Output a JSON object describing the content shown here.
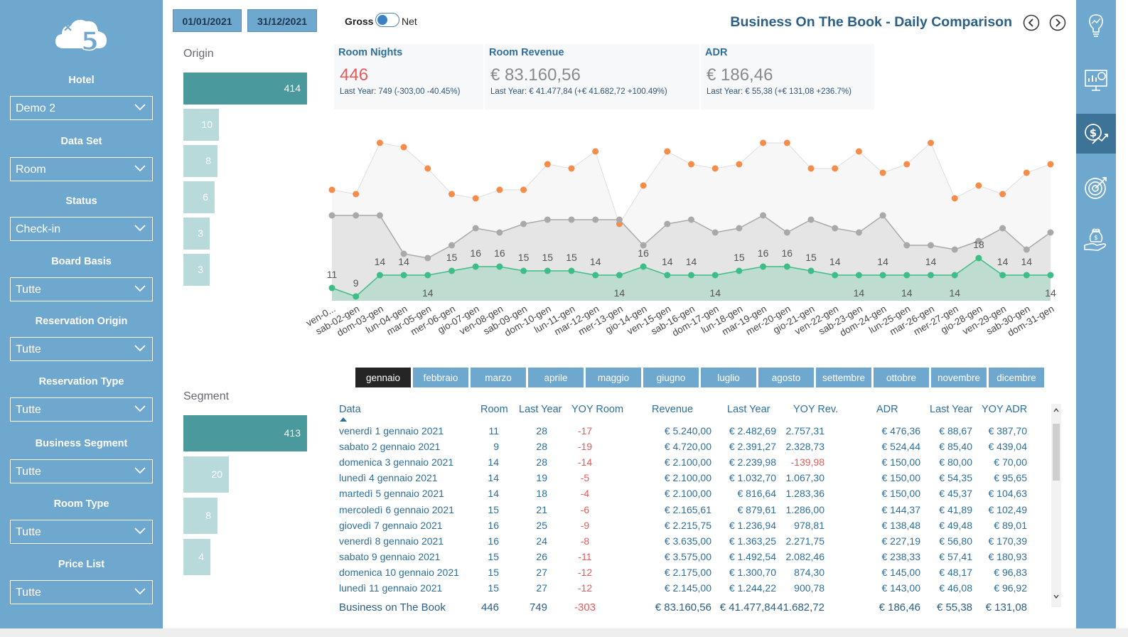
{
  "header": {
    "start_date": "01/01/2021",
    "end_date": "31/12/2021",
    "toggle_left": "Gross",
    "toggle_right": "Net",
    "title": "Business On The Book - Daily Comparison"
  },
  "filters": [
    {
      "label": "Hotel",
      "value": "Demo 2"
    },
    {
      "label": "Data Set",
      "value": "Room"
    },
    {
      "label": "Status",
      "value": "Check-in"
    },
    {
      "label": "Board Basis",
      "value": "Tutte"
    },
    {
      "label": "Reservation Origin",
      "value": "Tutte"
    },
    {
      "label": "Reservation Type",
      "value": "Tutte"
    },
    {
      "label": "Business Segment",
      "value": "Tutte"
    },
    {
      "label": "Room Type",
      "value": "Tutte"
    },
    {
      "label": "Price List",
      "value": "Tutte"
    }
  ],
  "rail": [
    "lightbulb-chart-icon",
    "presentation-chart-icon",
    "dollar-trend-icon",
    "target-icon",
    "money-bag-hand-icon"
  ],
  "origin": {
    "title": "Origin",
    "values": [
      414,
      10,
      8,
      6,
      3,
      3
    ]
  },
  "segment": {
    "title": "Segment",
    "values": [
      413,
      20,
      8,
      4
    ]
  },
  "kpis": [
    {
      "title": "Room Nights",
      "value": "446",
      "sub": "Last Year: 749 (-303,00 -40.45%)"
    },
    {
      "title": "Room Revenue",
      "value": "€ 83.160,56",
      "sub": "Last Year: € 41.477,84 (+€ 41.682,72 +100.49%)"
    },
    {
      "title": "ADR",
      "value": "€ 186,46",
      "sub": "Last Year: € 55,38 (+€ 131,08 +236.7%)"
    }
  ],
  "chart_data": {
    "type": "line",
    "categories": [
      "ven-0...",
      "sab-02-gen",
      "dom-03-gen",
      "lun-04-gen",
      "mar-05-gen",
      "mer-06-gen",
      "gio-07-gen",
      "ven-08-gen",
      "sab-09-gen",
      "dom-10-gen",
      "lun-11-gen",
      "mar-12-gen",
      "mer-13-gen",
      "gio-14-gen",
      "ven-15-gen",
      "sab-16-gen",
      "dom-17-gen",
      "lun-18-gen",
      "mar-19-gen",
      "mer-20-gen",
      "gio-21-gen",
      "ven-22-gen",
      "sab-23-gen",
      "dom-24-gen",
      "lun-25-gen",
      "mar-26-gen",
      "mer-27-gen",
      "gio-28-gen",
      "ven-29-gen",
      "sab-30-gen",
      "dom-31-gen"
    ],
    "series": [
      {
        "values": [
          11,
          9,
          14,
          14,
          14,
          15,
          16,
          16,
          15,
          15,
          15,
          14,
          14,
          16,
          14,
          14,
          14,
          15,
          16,
          16,
          15,
          14,
          14,
          14,
          14,
          14,
          14,
          18,
          14,
          14,
          14
        ],
        "color": "#3dbd87"
      },
      {
        "values": [
          28,
          28,
          28,
          19,
          18,
          21,
          25,
          24,
          26,
          27,
          27,
          27,
          27,
          21,
          26,
          27,
          24,
          25,
          28,
          24,
          27,
          25,
          24,
          28,
          21,
          21,
          20,
          22,
          25,
          20,
          24
        ],
        "color": "#a9a9a9"
      },
      {
        "values": [
          34,
          33,
          45,
          44,
          39,
          33,
          32,
          34,
          34,
          40,
          39,
          43,
          26,
          35,
          43,
          40,
          39,
          40,
          45,
          45,
          39,
          39,
          43,
          38,
          40,
          45,
          32,
          35,
          33,
          38,
          40
        ],
        "color": "#f58c4a"
      }
    ],
    "ylim": [
      8,
      48
    ]
  },
  "months": [
    "gennaio",
    "febbraio",
    "marzo",
    "aprile",
    "maggio",
    "giugno",
    "luglio",
    "agosto",
    "settembre",
    "ottobre",
    "novembre",
    "dicembre"
  ],
  "table": {
    "headers": [
      "Data",
      "Room",
      "Last Year",
      "YOY Room",
      "Revenue",
      "Last Year",
      "YOY Rev.",
      "ADR",
      "Last Year",
      "YOY ADR"
    ],
    "rows": [
      [
        "venerdì 1 gennaio 2021",
        "11",
        "28",
        "-17",
        "€ 5.240,00",
        "€ 2.482,69",
        "2.757,31",
        "€ 476,36",
        "€ 88,67",
        "€ 387,70"
      ],
      [
        "sabato 2 gennaio 2021",
        "9",
        "28",
        "-19",
        "€ 4.720,00",
        "€ 2.391,27",
        "2.328,73",
        "€ 524,44",
        "€ 85,40",
        "€ 439,04"
      ],
      [
        "domenica 3 gennaio 2021",
        "14",
        "28",
        "-14",
        "€ 2.100,00",
        "€ 2.239,98",
        "-139,98",
        "€ 150,00",
        "€ 80,00",
        "€ 70,00"
      ],
      [
        "lunedì 4 gennaio 2021",
        "14",
        "19",
        "-5",
        "€ 2.100,00",
        "€ 1.032,70",
        "1.067,30",
        "€ 150,00",
        "€ 54,35",
        "€ 95,65"
      ],
      [
        "martedì 5 gennaio 2021",
        "14",
        "18",
        "-4",
        "€ 2.100,00",
        "€ 816,64",
        "1.283,36",
        "€ 150,00",
        "€ 45,37",
        "€ 104,63"
      ],
      [
        "mercoledì 6 gennaio 2021",
        "15",
        "21",
        "-6",
        "€ 2.165,61",
        "€ 879,61",
        "1.286,00",
        "€ 144,37",
        "€ 41,89",
        "€ 102,49"
      ],
      [
        "giovedì 7 gennaio 2021",
        "16",
        "25",
        "-9",
        "€ 2.215,75",
        "€ 1.236,94",
        "978,81",
        "€ 138,48",
        "€ 49,48",
        "€ 89,01"
      ],
      [
        "venerdì 8 gennaio 2021",
        "16",
        "24",
        "-8",
        "€ 3.635,00",
        "€ 1.363,25",
        "2.271,75",
        "€ 227,19",
        "€ 56,80",
        "€ 170,39"
      ],
      [
        "sabato 9 gennaio 2021",
        "15",
        "26",
        "-11",
        "€ 3.575,00",
        "€ 1.492,54",
        "2.082,46",
        "€ 238,33",
        "€ 57,41",
        "€ 180,93"
      ],
      [
        "domenica 10 gennaio 2021",
        "15",
        "27",
        "-12",
        "€ 2.175,00",
        "€ 1.300,70",
        "874,30",
        "€ 145,00",
        "€ 48,17",
        "€ 96,83"
      ],
      [
        "lunedì 11 gennaio 2021",
        "15",
        "27",
        "-12",
        "€ 2.145,00",
        "€ 1.244,22",
        "900,78",
        "€ 143,00",
        "€ 46,08",
        "€ 96,92"
      ]
    ],
    "total": [
      "Business on The Book",
      "446",
      "749",
      "-303",
      "€ 83.160,56",
      "€ 41.477,84",
      "41.682,72",
      "€ 186,46",
      "€ 55,38",
      "€ 131,08"
    ]
  }
}
